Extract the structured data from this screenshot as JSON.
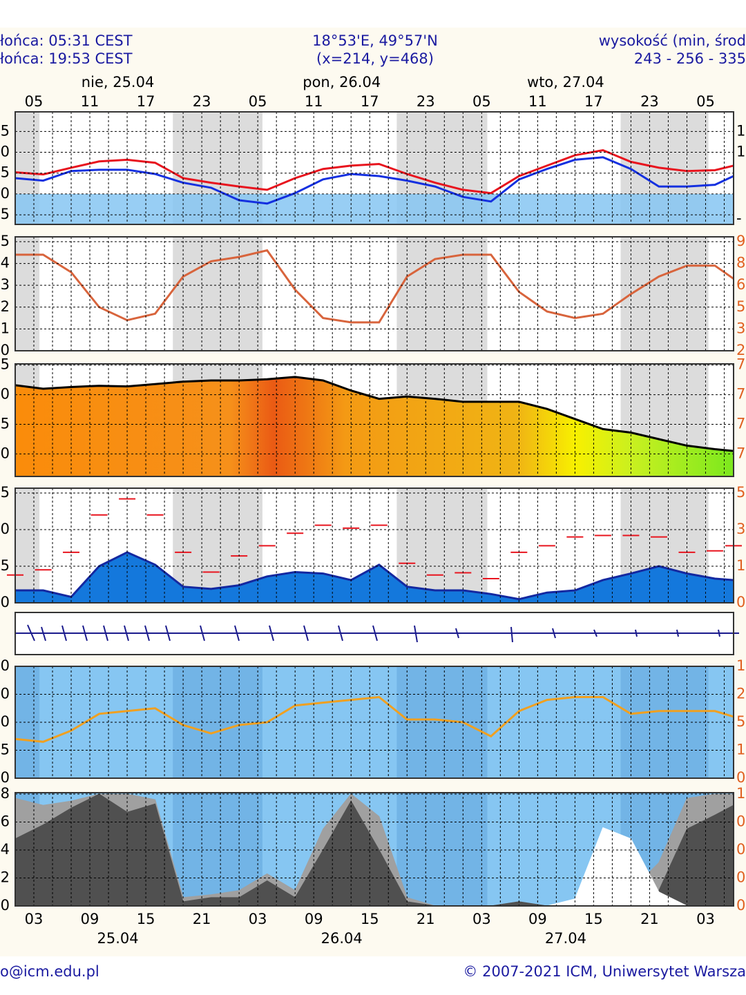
{
  "header": {
    "left": [
      "łońca: 05:31 CEST",
      "łońca: 19:53 CEST"
    ],
    "center": [
      "18°53'E, 49°57'N",
      "(x=214,  y=468)"
    ],
    "right": [
      "wysokość (min, środ",
      "243 - 256 - 335"
    ]
  },
  "footer": {
    "left": "o@icm.edu.pl",
    "right": "© 2007-2021 ICM, Uniwersytet Warsza"
  },
  "chart_data": [
    {
      "type": "line",
      "x": [
        0,
        3,
        6,
        9,
        12,
        15,
        18,
        21,
        24,
        27,
        30,
        33,
        36,
        39,
        42,
        45,
        48,
        51,
        54,
        57,
        60,
        63,
        66,
        69,
        72,
        75,
        77
      ],
      "xlim": [
        0,
        77
      ],
      "xticks": [
        {
          "value": 2,
          "label": "05"
        },
        {
          "value": 8,
          "label": "11"
        },
        {
          "value": 14,
          "label": "17"
        },
        {
          "value": 20,
          "label": "23"
        },
        {
          "value": 26,
          "label": "05"
        },
        {
          "value": 32,
          "label": "11"
        },
        {
          "value": 38,
          "label": "17"
        },
        {
          "value": 44,
          "label": "23"
        },
        {
          "value": 50,
          "label": "05"
        },
        {
          "value": 56,
          "label": "11"
        },
        {
          "value": 62,
          "label": "17"
        },
        {
          "value": 68,
          "label": "23"
        },
        {
          "value": 74,
          "label": "05"
        }
      ],
      "day_labels": [
        {
          "value": 11,
          "label": "nie, 25.04"
        },
        {
          "value": 35,
          "label": "pon, 26.04"
        },
        {
          "value": 59,
          "label": "wto, 27.04"
        }
      ],
      "ylim": [
        -7.3,
        19.7
      ],
      "label_range": [
        15,
        -5
      ],
      "left_labels": [
        "5",
        "0",
        "5",
        "0",
        "5"
      ],
      "right_labels": [
        {
          "label": "1",
          "at": 15
        },
        {
          "label": "1",
          "at": 10
        },
        {
          "label": "-",
          "at": -6
        }
      ],
      "series": [
        {
          "name": "temp",
          "color": "#e8141e",
          "values": [
            5.2,
            4.7,
            6.3,
            7.8,
            8.2,
            7.5,
            3.8,
            2.7,
            1.8,
            1.0,
            3.8,
            6.0,
            6.8,
            7.2,
            4.8,
            2.7,
            1.0,
            0.2,
            4.3,
            6.8,
            9.3,
            10.5,
            7.7,
            6.3,
            5.5,
            5.7,
            6.8
          ]
        },
        {
          "name": "dew",
          "color": "#1430e0",
          "values": [
            3.8,
            3.2,
            5.5,
            5.8,
            5.8,
            4.8,
            2.7,
            1.5,
            -1.5,
            -2.3,
            0.2,
            3.5,
            4.8,
            4.3,
            3.2,
            1.8,
            -0.7,
            -1.8,
            3.5,
            6.0,
            8.2,
            8.8,
            6.0,
            1.8,
            1.8,
            2.2,
            4.3
          ]
        }
      ]
    },
    {
      "type": "line",
      "x": [
        0,
        3,
        6,
        9,
        12,
        15,
        18,
        21,
        24,
        27,
        30,
        33,
        36,
        39,
        42,
        45,
        48,
        51,
        54,
        57,
        60,
        63,
        66,
        69,
        72,
        75,
        77
      ],
      "xlim": [
        0,
        77
      ],
      "ylim": [
        0,
        5.22
      ],
      "label_range": [
        5,
        0
      ],
      "left_labels": [
        "5",
        "4",
        "3",
        "2",
        "1",
        "0"
      ],
      "right_labels": [
        "9",
        "8",
        "6",
        "5",
        "3",
        "2"
      ],
      "series": [
        {
          "name": "line",
          "color": "#d8643c",
          "values": [
            4.4,
            4.4,
            3.6,
            2.0,
            1.4,
            1.7,
            3.4,
            4.1,
            4.3,
            4.6,
            2.8,
            1.5,
            1.3,
            1.3,
            3.4,
            4.2,
            4.4,
            4.4,
            2.7,
            1.8,
            1.5,
            1.7,
            2.6,
            3.4,
            3.9,
            3.9,
            3.3
          ]
        }
      ]
    },
    {
      "type": "area",
      "x": [
        0,
        3,
        6,
        9,
        12,
        15,
        18,
        21,
        24,
        27,
        30,
        33,
        36,
        39,
        42,
        45,
        48,
        51,
        54,
        57,
        60,
        63,
        66,
        69,
        72,
        75,
        77
      ],
      "xlim": [
        0,
        77
      ],
      "ylim": [
        1006.2,
        1025.2
      ],
      "label_range": [
        1025,
        1010
      ],
      "left_labels": [
        "5",
        "0",
        "5",
        "0"
      ],
      "right_labels": [
        "7",
        "7",
        "7",
        "7"
      ],
      "series": [
        {
          "name": "pressure",
          "color": "#000000",
          "values": [
            1021.6,
            1021.0,
            1021.3,
            1021.5,
            1021.4,
            1021.8,
            1022.2,
            1022.4,
            1022.4,
            1022.6,
            1023.0,
            1022.4,
            1020.7,
            1019.3,
            1019.7,
            1019.3,
            1018.8,
            1018.8,
            1018.8,
            1017.6,
            1015.9,
            1014.2,
            1013.6,
            1012.5,
            1011.4,
            1010.8,
            1010.5
          ]
        }
      ]
    },
    {
      "type": "area",
      "x": [
        0,
        3,
        6,
        9,
        12,
        15,
        18,
        21,
        24,
        27,
        30,
        33,
        36,
        39,
        42,
        45,
        48,
        51,
        54,
        57,
        60,
        63,
        66,
        69,
        72,
        75,
        77
      ],
      "xlim": [
        0,
        77
      ],
      "ylim": [
        0,
        15.66
      ],
      "label_range": [
        15,
        0
      ],
      "left_labels": [
        "5",
        "0",
        "5",
        "0"
      ],
      "right_labels": [
        "5",
        "3",
        "1",
        "0"
      ],
      "series": [
        {
          "name": "wind",
          "color": "#1478dc",
          "values": [
            1.7,
            1.7,
            0.8,
            5.0,
            6.9,
            5.2,
            2.2,
            1.9,
            2.4,
            3.6,
            4.2,
            4.0,
            3.1,
            5.2,
            2.2,
            1.7,
            1.7,
            1.2,
            0.5,
            1.4,
            1.7,
            3.1,
            4.0,
            5.0,
            4.0,
            3.3,
            3.1
          ]
        },
        {
          "name": "gust",
          "style": "dash",
          "color": "#e8141e",
          "values": [
            3.8,
            4.5,
            6.9,
            12.0,
            14.2,
            12.0,
            6.9,
            4.2,
            6.4,
            7.8,
            9.5,
            10.6,
            10.2,
            10.6,
            5.4,
            3.8,
            4.1,
            3.3,
            6.9,
            7.8,
            9.0,
            9.2,
            9.2,
            9.0,
            6.9,
            7.1,
            7.8
          ]
        }
      ]
    },
    {
      "type": "line",
      "x": [
        0,
        3,
        6,
        9,
        12,
        15,
        18,
        21,
        24,
        27,
        30,
        33,
        36,
        39,
        42,
        45,
        48,
        51,
        54,
        57,
        60,
        63,
        66,
        69,
        72,
        75,
        77
      ],
      "xlim": [
        0,
        77
      ],
      "ylim": [
        0,
        4
      ],
      "label_range": [
        4,
        0
      ],
      "left_labels": [
        "0",
        "0",
        "0",
        "5",
        "0"
      ],
      "right_labels": [
        "1",
        "2",
        "5",
        "1",
        "0"
      ],
      "series": [
        {
          "name": "orange",
          "color": "#f0a020",
          "values": [
            1.4,
            1.3,
            1.7,
            2.3,
            2.4,
            2.5,
            1.9,
            1.6,
            1.9,
            2.0,
            2.6,
            2.7,
            2.8,
            2.9,
            2.1,
            2.1,
            2.0,
            1.5,
            2.4,
            2.8,
            2.9,
            2.9,
            2.3,
            2.4,
            2.4,
            2.4,
            2.2
          ]
        }
      ]
    },
    {
      "type": "area",
      "x": [
        0,
        3,
        6,
        9,
        12,
        15,
        18,
        21,
        24,
        27,
        30,
        33,
        36,
        39,
        42,
        45,
        48,
        51,
        54,
        57,
        60,
        63,
        66,
        69,
        72,
        75,
        77
      ],
      "xlim": [
        0,
        77
      ],
      "ylim": [
        0,
        8.1
      ],
      "label_range": [
        8,
        0
      ],
      "left_labels": [
        "8",
        "6",
        "4",
        "2",
        "0"
      ],
      "right_labels": [
        "1",
        "0",
        "0",
        "0",
        "0"
      ],
      "xticks": [
        {
          "value": 2,
          "label": "03"
        },
        {
          "value": 8,
          "label": "09"
        },
        {
          "value": 14,
          "label": "15"
        },
        {
          "value": 20,
          "label": "21"
        },
        {
          "value": 26,
          "label": "03"
        },
        {
          "value": 32,
          "label": "09"
        },
        {
          "value": 38,
          "label": "15"
        },
        {
          "value": 44,
          "label": "21"
        },
        {
          "value": 50,
          "label": "03"
        },
        {
          "value": 56,
          "label": "09"
        },
        {
          "value": 62,
          "label": "15"
        },
        {
          "value": 68,
          "label": "21"
        },
        {
          "value": 74,
          "label": "03"
        }
      ],
      "dates": [
        {
          "value": 11,
          "label": "25.04"
        },
        {
          "value": 35,
          "label": "26.04"
        },
        {
          "value": 59,
          "label": "27.04"
        }
      ],
      "series": [
        {
          "name": "light",
          "color": "#a0a0a0",
          "values": [
            7.7,
            7.2,
            7.5,
            8,
            8,
            7.6,
            0.6,
            0.8,
            1.1,
            2.3,
            1.1,
            5.5,
            8,
            6.4,
            0.6,
            0,
            0,
            0,
            0.3,
            0,
            0,
            0.6,
            1.1,
            3.1,
            7.7,
            8,
            8
          ]
        },
        {
          "name": "dark",
          "color": "#505050",
          "values": [
            4.8,
            5.8,
            7,
            8,
            6.7,
            7.3,
            0.3,
            0.6,
            0.6,
            1.8,
            0.6,
            4,
            7.5,
            4,
            0.3,
            0,
            0,
            0,
            0.3,
            0,
            0,
            0.1,
            0.3,
            1.1,
            5.5,
            6.5,
            7.2
          ]
        },
        {
          "name": "white",
          "color": "#ffffff",
          "values": [
            0,
            0,
            0,
            0,
            0,
            0,
            0,
            0,
            0,
            0,
            0,
            0,
            0,
            0,
            0,
            0,
            0,
            0,
            0,
            0,
            0.5,
            5.6,
            4.8,
            1.0,
            0,
            0,
            0
          ]
        }
      ]
    }
  ]
}
